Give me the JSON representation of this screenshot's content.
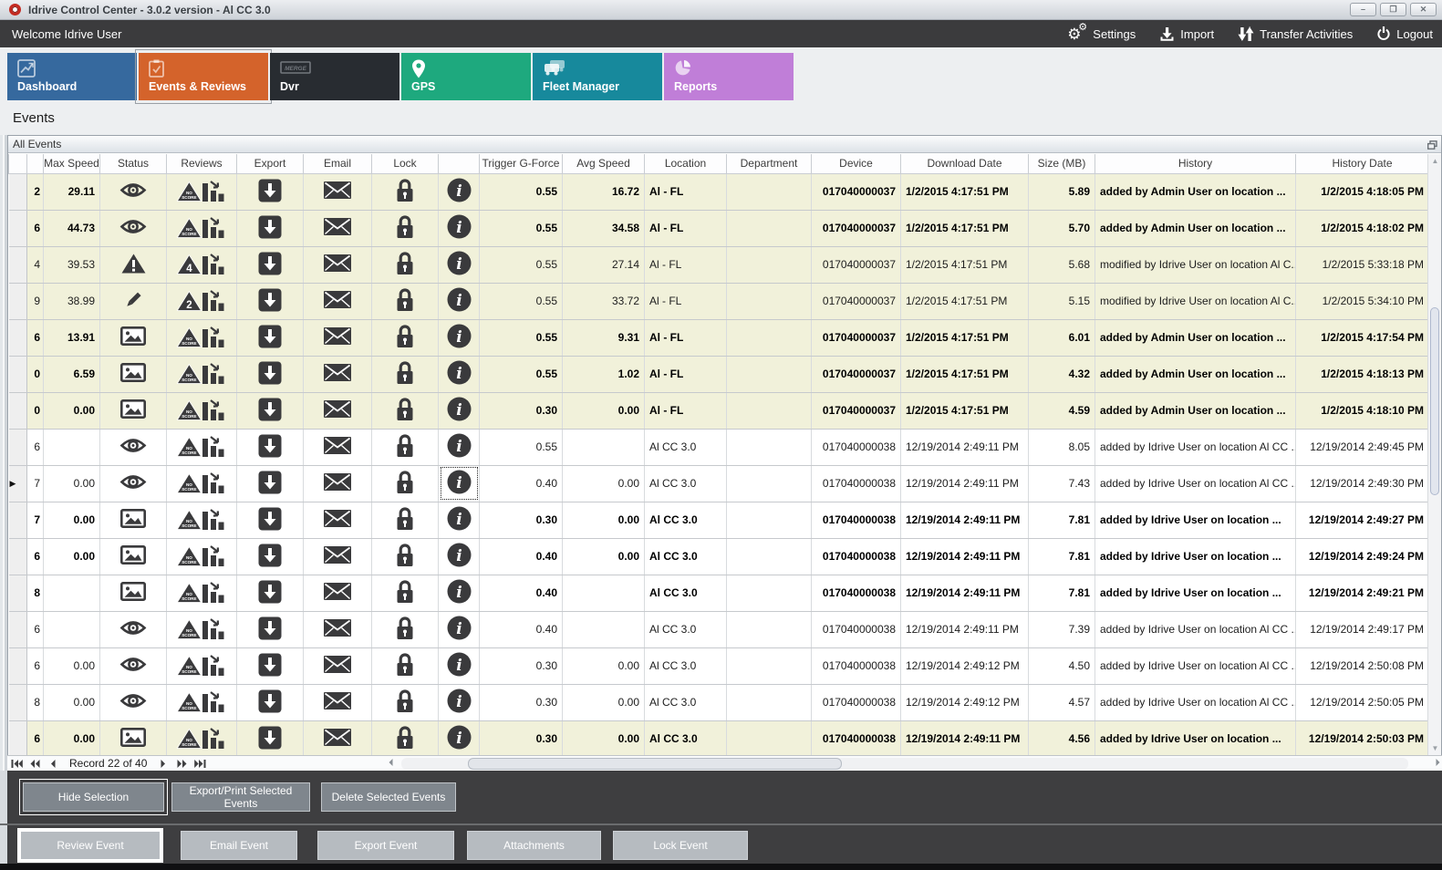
{
  "window": {
    "title": "Idrive Control Center - 3.0.2 version - Al CC 3.0",
    "controls": {
      "minimize": "–",
      "maximize": "❒",
      "close": "✕"
    }
  },
  "topbar": {
    "welcome": "Welcome Idrive User",
    "actions": [
      {
        "id": "settings",
        "label": "Settings",
        "icon": "gears-icon"
      },
      {
        "id": "import",
        "label": "Import",
        "icon": "import-icon"
      },
      {
        "id": "transfer",
        "label": "Transfer Activities",
        "icon": "transfer-arrows-icon"
      },
      {
        "id": "logout",
        "label": "Logout",
        "icon": "power-icon"
      }
    ]
  },
  "tabs": [
    {
      "label": "Dashboard",
      "color": "#36699e",
      "active": false,
      "icon": "line-chart-icon"
    },
    {
      "label": "Events & Reviews",
      "color": "#d4632b",
      "active": true,
      "icon": "clipboard-check-icon"
    },
    {
      "label": "Dvr",
      "color": "#282c31",
      "active": false,
      "icon": "merge-badge-icon",
      "badge": "MERGE"
    },
    {
      "label": "GPS",
      "color": "#1ea97e",
      "active": false,
      "icon": "map-pin-icon"
    },
    {
      "label": "Fleet Manager",
      "color": "#17899c",
      "active": false,
      "icon": "vehicles-icon"
    },
    {
      "label": "Reports",
      "color": "#c07ed8",
      "active": false,
      "icon": "pie-chart-icon"
    }
  ],
  "page": {
    "heading": "Events",
    "panel_title": "All Events"
  },
  "table": {
    "columns": [
      "Max Speed",
      "Status",
      "Reviews",
      "Export",
      "Email",
      "Lock",
      "",
      "Trigger G-Force",
      "Avg Speed",
      "Location",
      "Department",
      "Device",
      "Download Date",
      "Size (MB)",
      "History",
      "History Date"
    ],
    "rows": [
      {
        "id_digit": "2",
        "max_speed": "29.11",
        "status_icon": "eye-icon",
        "score_label": "NO SCORE",
        "emphasized": true,
        "highlighted": true,
        "current": false,
        "info_focused": false,
        "trigger_g_force": "0.55",
        "avg_speed": "16.72",
        "location": "Al - FL",
        "department": "",
        "device": "017040000037",
        "download_date": "1/2/2015 4:17:51 PM",
        "size_mb": "5.89",
        "history": "added by Admin User on location ...",
        "history_date": "1/2/2015 4:18:05 PM"
      },
      {
        "id_digit": "6",
        "max_speed": "44.73",
        "status_icon": "eye-icon",
        "score_label": "NO SCORE",
        "emphasized": true,
        "highlighted": true,
        "current": false,
        "info_focused": false,
        "trigger_g_force": "0.55",
        "avg_speed": "34.58",
        "location": "Al - FL",
        "department": "",
        "device": "017040000037",
        "download_date": "1/2/2015 4:17:51 PM",
        "size_mb": "5.70",
        "history": "added by Admin User on location ...",
        "history_date": "1/2/2015 4:18:02 PM"
      },
      {
        "id_digit": "4",
        "max_speed": "39.53",
        "status_icon": "warning-icon",
        "score_label": "4",
        "emphasized": false,
        "highlighted": true,
        "current": false,
        "info_focused": false,
        "trigger_g_force": "0.55",
        "avg_speed": "27.14",
        "location": "Al - FL",
        "department": "",
        "device": "017040000037",
        "download_date": "1/2/2015 4:17:51 PM",
        "size_mb": "5.68",
        "history": "modified by Idrive User on location Al C...",
        "history_date": "1/2/2015 5:33:18 PM"
      },
      {
        "id_digit": "9",
        "max_speed": "38.99",
        "status_icon": "pencil-icon",
        "score_label": "2",
        "emphasized": false,
        "highlighted": true,
        "current": false,
        "info_focused": false,
        "trigger_g_force": "0.55",
        "avg_speed": "33.72",
        "location": "Al - FL",
        "department": "",
        "device": "017040000037",
        "download_date": "1/2/2015 4:17:51 PM",
        "size_mb": "5.15",
        "history": "modified by Idrive User on location Al C...",
        "history_date": "1/2/2015 5:34:10 PM"
      },
      {
        "id_digit": "6",
        "max_speed": "13.91",
        "status_icon": "image-icon",
        "score_label": "NO SCORE",
        "emphasized": true,
        "highlighted": true,
        "current": false,
        "info_focused": false,
        "trigger_g_force": "0.55",
        "avg_speed": "9.31",
        "location": "Al - FL",
        "department": "",
        "device": "017040000037",
        "download_date": "1/2/2015 4:17:51 PM",
        "size_mb": "6.01",
        "history": "added by Admin User on location ...",
        "history_date": "1/2/2015 4:17:54 PM"
      },
      {
        "id_digit": "0",
        "max_speed": "6.59",
        "status_icon": "image-icon",
        "score_label": "NO SCORE",
        "emphasized": true,
        "highlighted": true,
        "current": false,
        "info_focused": false,
        "trigger_g_force": "0.55",
        "avg_speed": "1.02",
        "location": "Al - FL",
        "department": "",
        "device": "017040000037",
        "download_date": "1/2/2015 4:17:51 PM",
        "size_mb": "4.32",
        "history": "added by Admin User on location ...",
        "history_date": "1/2/2015 4:18:13 PM"
      },
      {
        "id_digit": "0",
        "max_speed": "0.00",
        "status_icon": "image-icon",
        "score_label": "NO SCORE",
        "emphasized": true,
        "highlighted": true,
        "current": false,
        "info_focused": false,
        "trigger_g_force": "0.30",
        "avg_speed": "0.00",
        "location": "Al - FL",
        "department": "",
        "device": "017040000037",
        "download_date": "1/2/2015 4:17:51 PM",
        "size_mb": "4.59",
        "history": "added by Admin User on location ...",
        "history_date": "1/2/2015 4:18:10 PM"
      },
      {
        "id_digit": "6",
        "max_speed": "",
        "status_icon": "eye-icon",
        "score_label": "NO SCORE",
        "emphasized": false,
        "highlighted": false,
        "current": false,
        "info_focused": false,
        "trigger_g_force": "0.55",
        "avg_speed": "",
        "location": "Al CC 3.0",
        "department": "",
        "device": "017040000038",
        "download_date": "12/19/2014 2:49:11 PM",
        "size_mb": "8.05",
        "history": "added by Idrive User on location Al CC ...",
        "history_date": "12/19/2014 2:49:45 PM"
      },
      {
        "id_digit": "7",
        "max_speed": "0.00",
        "status_icon": "eye-icon",
        "score_label": "NO SCORE",
        "emphasized": false,
        "highlighted": false,
        "current": true,
        "info_focused": true,
        "trigger_g_force": "0.40",
        "avg_speed": "0.00",
        "location": "Al CC 3.0",
        "department": "",
        "device": "017040000038",
        "download_date": "12/19/2014 2:49:11 PM",
        "size_mb": "7.43",
        "history": "added by Idrive User on location Al CC ...",
        "history_date": "12/19/2014 2:49:30 PM"
      },
      {
        "id_digit": "7",
        "max_speed": "0.00",
        "status_icon": "image-icon",
        "score_label": "NO SCORE",
        "emphasized": true,
        "highlighted": false,
        "current": false,
        "info_focused": false,
        "trigger_g_force": "0.30",
        "avg_speed": "0.00",
        "location": "Al CC 3.0",
        "department": "",
        "device": "017040000038",
        "download_date": "12/19/2014 2:49:11 PM",
        "size_mb": "7.81",
        "history": "added by Idrive User on location ...",
        "history_date": "12/19/2014 2:49:27 PM"
      },
      {
        "id_digit": "6",
        "max_speed": "0.00",
        "status_icon": "image-icon",
        "score_label": "NO SCORE",
        "emphasized": true,
        "highlighted": false,
        "current": false,
        "info_focused": false,
        "trigger_g_force": "0.40",
        "avg_speed": "0.00",
        "location": "Al CC 3.0",
        "department": "",
        "device": "017040000038",
        "download_date": "12/19/2014 2:49:11 PM",
        "size_mb": "7.81",
        "history": "added by Idrive User on location ...",
        "history_date": "12/19/2014 2:49:24 PM"
      },
      {
        "id_digit": "8",
        "max_speed": "",
        "status_icon": "image-icon",
        "score_label": "NO SCORE",
        "emphasized": true,
        "highlighted": false,
        "current": false,
        "info_focused": false,
        "trigger_g_force": "0.40",
        "avg_speed": "",
        "location": "Al CC 3.0",
        "department": "",
        "device": "017040000038",
        "download_date": "12/19/2014 2:49:11 PM",
        "size_mb": "7.81",
        "history": "added by Idrive User on location ...",
        "history_date": "12/19/2014 2:49:21 PM"
      },
      {
        "id_digit": "6",
        "max_speed": "",
        "status_icon": "eye-icon",
        "score_label": "NO SCORE",
        "emphasized": false,
        "highlighted": false,
        "current": false,
        "info_focused": false,
        "trigger_g_force": "0.40",
        "avg_speed": "",
        "location": "Al CC 3.0",
        "department": "",
        "device": "017040000038",
        "download_date": "12/19/2014 2:49:11 PM",
        "size_mb": "7.39",
        "history": "added by Idrive User on location Al CC ...",
        "history_date": "12/19/2014 2:49:17 PM"
      },
      {
        "id_digit": "6",
        "max_speed": "0.00",
        "status_icon": "eye-icon",
        "score_label": "NO SCORE",
        "emphasized": false,
        "highlighted": false,
        "current": false,
        "info_focused": false,
        "trigger_g_force": "0.30",
        "avg_speed": "0.00",
        "location": "Al CC 3.0",
        "department": "",
        "device": "017040000038",
        "download_date": "12/19/2014 2:49:12 PM",
        "size_mb": "4.50",
        "history": "added by Idrive User on location Al CC ...",
        "history_date": "12/19/2014 2:50:08 PM"
      },
      {
        "id_digit": "8",
        "max_speed": "0.00",
        "status_icon": "eye-icon",
        "score_label": "NO SCORE",
        "emphasized": false,
        "highlighted": false,
        "current": false,
        "info_focused": false,
        "trigger_g_force": "0.30",
        "avg_speed": "0.00",
        "location": "Al CC 3.0",
        "department": "",
        "device": "017040000038",
        "download_date": "12/19/2014 2:49:12 PM",
        "size_mb": "4.57",
        "history": "added by Idrive User on location Al CC ...",
        "history_date": "12/19/2014 2:50:05 PM"
      },
      {
        "id_digit": "6",
        "max_speed": "0.00",
        "status_icon": "image-icon",
        "score_label": "NO SCORE",
        "emphasized": true,
        "highlighted": true,
        "current": false,
        "info_focused": false,
        "trigger_g_force": "0.30",
        "avg_speed": "0.00",
        "location": "Al CC 3.0",
        "department": "",
        "device": "017040000038",
        "download_date": "12/19/2014 2:49:11 PM",
        "size_mb": "4.56",
        "history": "added by Idrive User on location ...",
        "history_date": "12/19/2014 2:50:03 PM"
      }
    ]
  },
  "pager": {
    "label": "Record 22 of 40"
  },
  "selection_buttons": [
    "Hide Selection",
    "Export/Print Selected Events",
    "Delete Selected  Events"
  ],
  "event_buttons": [
    "Review Event",
    "Email Event",
    "Export Event",
    "Attachments",
    "Lock Event"
  ],
  "colors": {
    "row_highlight": "#f1f1da",
    "topbar": "#3b3b3d",
    "icon": "#3a3a3c",
    "tab_dashboard": "#36699e",
    "tab_events": "#d4632b",
    "tab_dvr": "#282c31",
    "tab_gps": "#1ea97e",
    "tab_fleet": "#17899c",
    "tab_reports": "#c07ed8"
  }
}
